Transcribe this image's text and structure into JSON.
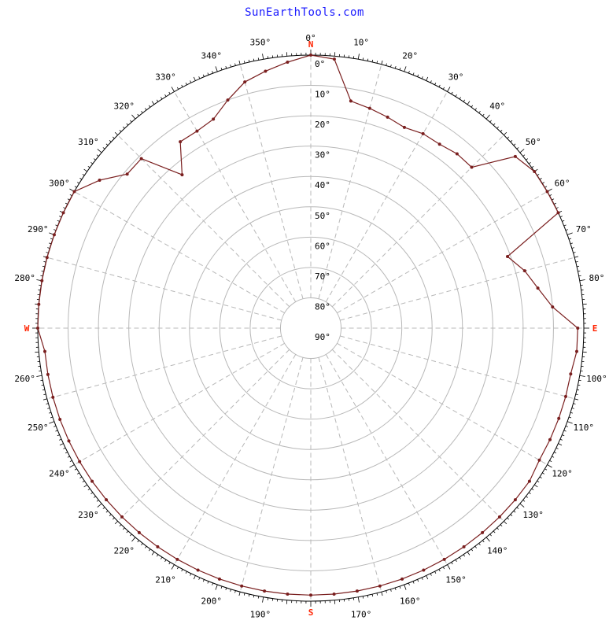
{
  "brand": {
    "text": "SunEarthTools.com"
  },
  "colors": {
    "horizon_line": "#7a1f1f",
    "cardinal": "#ff2200",
    "brand": "#1a1aff",
    "grid": "#b8b8b8",
    "outer_circle": "#000000"
  },
  "chart_data": {
    "type": "polar",
    "title": "",
    "projection": "azimuth-elevation (north up, zenith at center)",
    "cardinal_labels": [
      "N",
      "E",
      "S",
      "W"
    ],
    "azimuth_tick_labels": [
      "0°",
      "10°",
      "20°",
      "30°",
      "40°",
      "50°",
      "60°",
      "70°",
      "80°",
      "100°",
      "110°",
      "120°",
      "130°",
      "140°",
      "150°",
      "160°",
      "170°",
      "190°",
      "200°",
      "210°",
      "220°",
      "230°",
      "240°",
      "250°",
      "260°",
      "280°",
      "290°",
      "300°",
      "310°",
      "320°",
      "330°",
      "340°",
      "350°"
    ],
    "elevation_tick_labels": [
      "0°",
      "10°",
      "20°",
      "30°",
      "40°",
      "50°",
      "60°",
      "70°",
      "80°",
      "90°"
    ],
    "elevation_range": [
      0,
      90
    ],
    "azimuth_range": [
      0,
      360
    ],
    "grid": true,
    "series": [
      {
        "type": "line",
        "marker": "dot",
        "azimuth": [
          0,
          5,
          10,
          15,
          20,
          25,
          30,
          35,
          40,
          45,
          50,
          55,
          60,
          65,
          70,
          75,
          80,
          85,
          90,
          95,
          100,
          105,
          110,
          115,
          120,
          125,
          130,
          135,
          140,
          145,
          150,
          155,
          160,
          165,
          170,
          175,
          180,
          185,
          190,
          195,
          200,
          205,
          210,
          215,
          220,
          225,
          230,
          235,
          240,
          245,
          250,
          255,
          260,
          265,
          270,
          275,
          280,
          285,
          290,
          295,
          300,
          305,
          310,
          315,
          320,
          325,
          330,
          335,
          340,
          345,
          350,
          355
        ],
        "elevation": [
          0,
          1,
          14,
          15,
          16,
          17,
          16,
          16,
          15,
          15,
          2,
          0,
          0,
          0,
          21,
          17,
          14,
          10,
          2,
          2,
          3,
          3,
          3,
          3,
          3,
          2,
          2,
          2,
          2,
          2,
          2,
          2,
          2,
          2,
          2,
          2,
          2,
          2,
          2,
          2,
          2,
          2,
          2,
          2,
          2,
          2,
          2,
          2,
          2,
          2,
          2,
          2,
          2,
          2,
          0,
          0,
          0,
          0,
          0,
          0,
          0,
          5,
          11,
          11,
          24,
          15,
          15,
          14,
          10,
          6,
          4,
          2
        ]
      }
    ]
  }
}
